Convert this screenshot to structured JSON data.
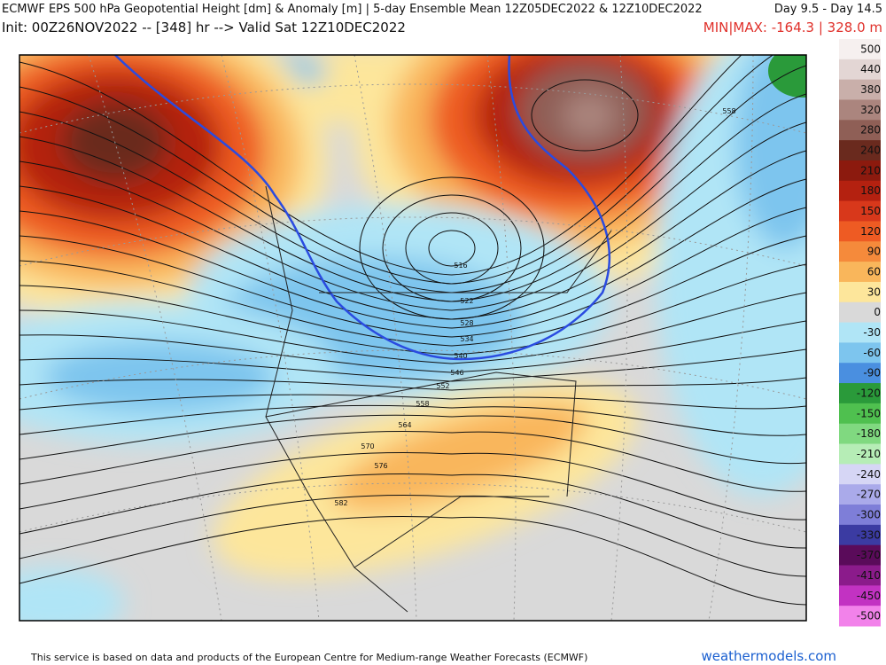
{
  "header": {
    "title": "ECMWF EPS 500 hPa Geopotential Height [dm] & Anomaly [m] | 5-day Ensemble Mean 12Z05DEC2022 & 12Z10DEC2022",
    "day_range": "Day 9.5 - Day 14.5",
    "init": "Init: 00Z26NOV2022 -- [348] hr --> Valid Sat 12Z10DEC2022",
    "minmax": "MIN|MAX: -164.3 | 328.0 m"
  },
  "colorbar": [
    {
      "value": 500,
      "color": "#f6f0ef"
    },
    {
      "value": 440,
      "color": "#e3d6d4"
    },
    {
      "value": 380,
      "color": "#c9afaa"
    },
    {
      "value": 320,
      "color": "#ab857e"
    },
    {
      "value": 280,
      "color": "#8f5f56"
    },
    {
      "value": 240,
      "color": "#6a2a1e"
    },
    {
      "value": 210,
      "color": "#8c1a0e"
    },
    {
      "value": 180,
      "color": "#b42110"
    },
    {
      "value": 150,
      "color": "#d8381b"
    },
    {
      "value": 120,
      "color": "#ee5b23"
    },
    {
      "value": 90,
      "color": "#f58a3b"
    },
    {
      "value": 60,
      "color": "#f9b65b"
    },
    {
      "value": 30,
      "color": "#fde69b"
    },
    {
      "value": 0,
      "color": "#d9d9d9"
    },
    {
      "value": -30,
      "color": "#b0e5f6"
    },
    {
      "value": -60,
      "color": "#7dc5ee"
    },
    {
      "value": -90,
      "color": "#4a8fe0"
    },
    {
      "value": -120,
      "color": "#2a9a3a"
    },
    {
      "value": -150,
      "color": "#4fc04f"
    },
    {
      "value": -180,
      "color": "#80d980"
    },
    {
      "value": -210,
      "color": "#b6edb6"
    },
    {
      "value": -240,
      "color": "#d6d6f5"
    },
    {
      "value": -270,
      "color": "#aaaaea"
    },
    {
      "value": -300,
      "color": "#7e7ed8"
    },
    {
      "value": -330,
      "color": "#3b3ba2"
    },
    {
      "value": -370,
      "color": "#5a0b5a"
    },
    {
      "value": -410,
      "color": "#8b1b8b"
    },
    {
      "value": -450,
      "color": "#c232c2"
    },
    {
      "value": -500,
      "color": "#f282ea"
    }
  ],
  "contour_labels": [
    516,
    522,
    528,
    534,
    540,
    546,
    552,
    558,
    564,
    570,
    576,
    582,
    558
  ],
  "footer": {
    "disclaimer": "This service is based on data and products of the European Centre for Medium-range Weather Forecasts (ECMWF)",
    "brand": "weathermodels.com"
  }
}
